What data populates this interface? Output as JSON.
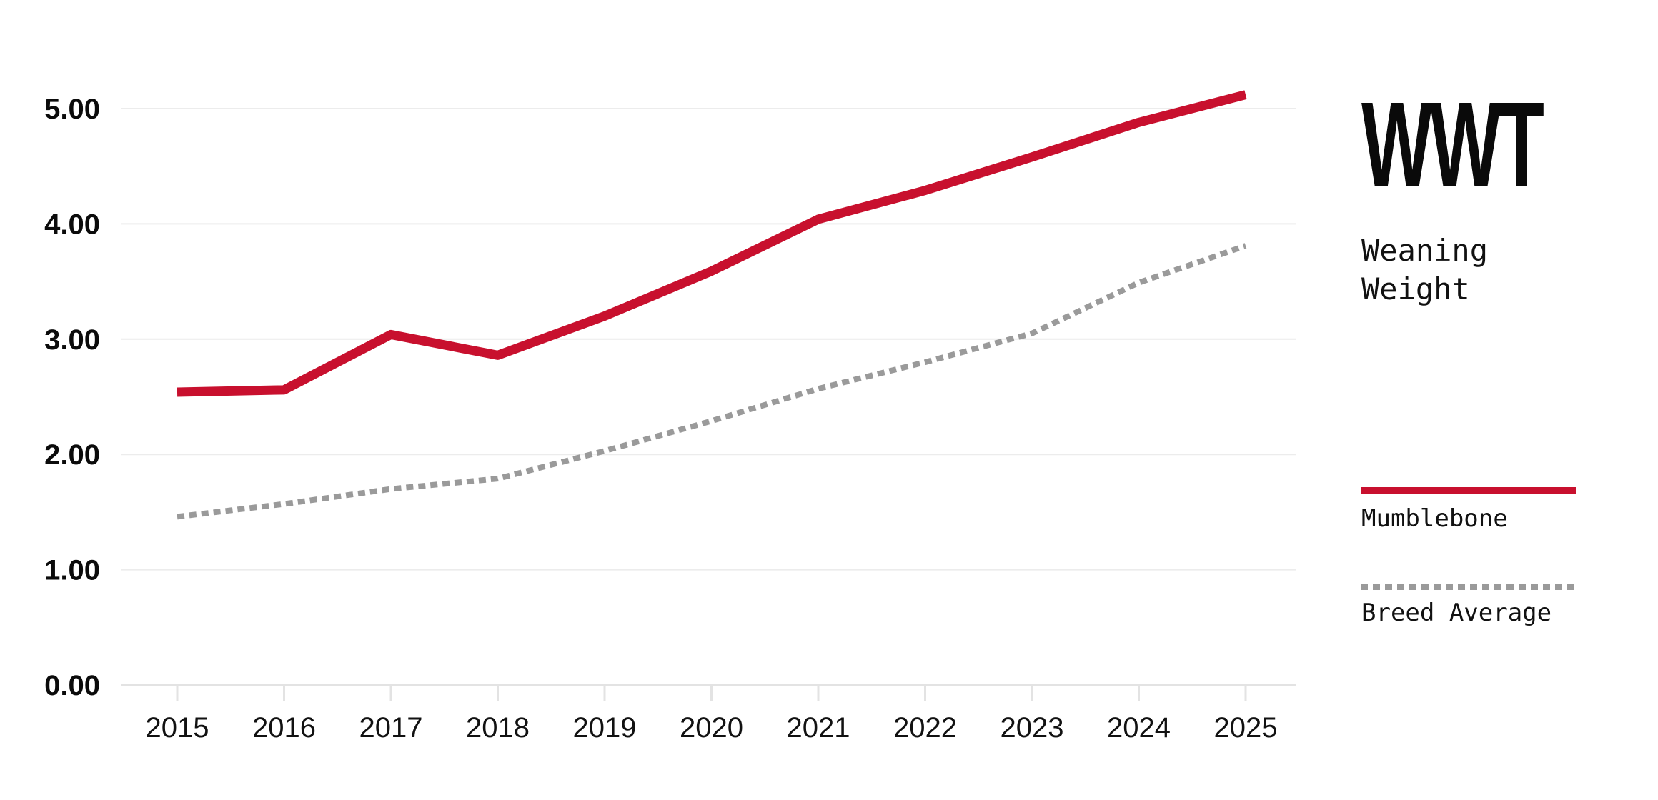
{
  "page": {
    "background": "#ffffff"
  },
  "chart_data": {
    "type": "line",
    "title": "WWT",
    "subtitle": "Weaning Weight",
    "x": [
      2015,
      2016,
      2017,
      2018,
      2019,
      2020,
      2021,
      2022,
      2023,
      2024,
      2025
    ],
    "x_tick_labels": [
      "2015",
      "2016",
      "2017",
      "2018",
      "2019",
      "2020",
      "2021",
      "2022",
      "2023",
      "2024",
      "2025"
    ],
    "y_tick_labels": [
      "0.00",
      "1.00",
      "2.00",
      "3.00",
      "4.00",
      "5.00"
    ],
    "ylim": [
      0,
      5.5
    ],
    "grid": "horizontal",
    "legend_position": "right",
    "series": [
      {
        "name": "Mumblebone",
        "color": "#C8102E",
        "line_style": "solid",
        "values": [
          2.54,
          2.56,
          3.04,
          2.86,
          3.2,
          3.59,
          4.04,
          4.29,
          4.58,
          4.88,
          5.12
        ]
      },
      {
        "name": "Breed Average",
        "color": "#9A9A9A",
        "line_style": "dotted",
        "values": [
          1.46,
          1.57,
          1.7,
          1.79,
          2.03,
          2.29,
          2.57,
          2.8,
          3.05,
          3.49,
          3.81
        ]
      }
    ]
  },
  "right_panel": {
    "logo": "WWT",
    "subtitle_lines": [
      "Weaning",
      "Weight"
    ],
    "legend": [
      {
        "label": "Mumblebone",
        "color": "#C8102E",
        "style": "solid"
      },
      {
        "label": "Breed Average",
        "color": "#9A9A9A",
        "style": "dotted"
      }
    ]
  },
  "colors": {
    "accent_red": "#C8102E",
    "muted_gray": "#9A9A9A",
    "gridline": "#ECECEC",
    "axis": "#E3E3E3",
    "text": "#0b0b0b"
  }
}
